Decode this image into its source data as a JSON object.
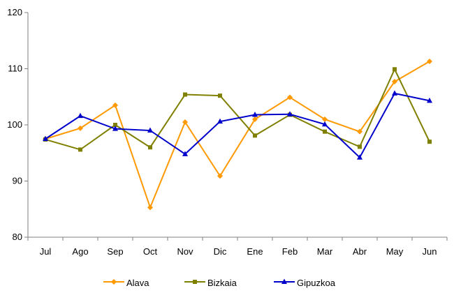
{
  "chart_data": {
    "type": "line",
    "title": "",
    "xlabel": "",
    "ylabel": "",
    "categories": [
      "Jul",
      "Ago",
      "Sep",
      "Oct",
      "Nov",
      "Dic",
      "Ene",
      "Feb",
      "Mar",
      "Abr",
      "May",
      "Jun"
    ],
    "ylim": [
      80,
      120
    ],
    "yticks": [
      80,
      90,
      100,
      110,
      120
    ],
    "grid": false,
    "legend_position": "bottom",
    "series": [
      {
        "name": "Alava",
        "color": "#FF9900",
        "marker": "diamond",
        "values": [
          97.5,
          99.4,
          103.5,
          85.3,
          100.5,
          90.9,
          101.0,
          104.9,
          101.0,
          98.8,
          107.7,
          111.3
        ]
      },
      {
        "name": "Bizkaia",
        "color": "#808000",
        "marker": "square",
        "values": [
          97.4,
          95.6,
          100.0,
          96.0,
          105.4,
          105.2,
          98.1,
          101.8,
          98.8,
          96.1,
          109.9,
          97.0
        ]
      },
      {
        "name": "Gipuzkoa",
        "color": "#0000CC",
        "marker": "triangle",
        "values": [
          97.5,
          101.6,
          99.3,
          99.0,
          94.8,
          100.6,
          101.8,
          101.9,
          100.1,
          94.2,
          105.6,
          104.3
        ]
      }
    ]
  }
}
